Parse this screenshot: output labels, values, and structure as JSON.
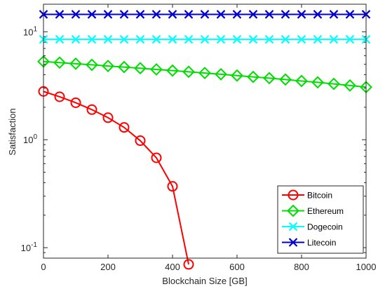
{
  "chart_data": {
    "type": "line",
    "title": "",
    "xlabel": "Blockchain Size [GB]",
    "ylabel": "Satisfaction",
    "xlim": [
      0,
      1000
    ],
    "ylim": [
      0.08,
      18
    ],
    "yscale": "log",
    "grid": false,
    "legend_position": "bottom-right",
    "x_ticks": [
      {
        "value": 0,
        "label": "0"
      },
      {
        "value": 200,
        "label": "200"
      },
      {
        "value": 400,
        "label": "400"
      },
      {
        "value": 600,
        "label": "600"
      },
      {
        "value": 800,
        "label": "800"
      },
      {
        "value": 1000,
        "label": "1000"
      }
    ],
    "y_ticks": [
      {
        "value": 0.1,
        "base": "10",
        "exp": "-1"
      },
      {
        "value": 1,
        "base": "10",
        "exp": "0"
      },
      {
        "value": 10,
        "base": "10",
        "exp": "1"
      }
    ],
    "series": [
      {
        "name": "Bitcoin",
        "color": "#ff0000",
        "marker": "circle",
        "x": [
          0,
          50,
          100,
          150,
          200,
          250,
          300,
          350,
          400,
          450
        ],
        "y": [
          2.8,
          2.5,
          2.2,
          1.9,
          1.6,
          1.3,
          0.98,
          0.68,
          0.37,
          0.07
        ]
      },
      {
        "name": "Ethereum",
        "color": "#00dd00",
        "marker": "diamond",
        "x": [
          0,
          50,
          100,
          150,
          200,
          250,
          300,
          350,
          400,
          450,
          500,
          550,
          600,
          650,
          700,
          750,
          800,
          850,
          900,
          950,
          1000
        ],
        "y": [
          5.3,
          5.18,
          5.06,
          4.94,
          4.82,
          4.71,
          4.6,
          4.48,
          4.37,
          4.26,
          4.15,
          4.04,
          3.93,
          3.82,
          3.72,
          3.61,
          3.5,
          3.4,
          3.29,
          3.18,
          3.07
        ]
      },
      {
        "name": "Dogecoin",
        "color": "#00ffff",
        "marker": "x",
        "x": [
          0,
          50,
          100,
          150,
          200,
          250,
          300,
          350,
          400,
          450,
          500,
          550,
          600,
          650,
          700,
          750,
          800,
          850,
          900,
          950,
          1000
        ],
        "y": [
          8.5,
          8.5,
          8.5,
          8.5,
          8.5,
          8.5,
          8.5,
          8.5,
          8.5,
          8.5,
          8.5,
          8.5,
          8.5,
          8.5,
          8.5,
          8.5,
          8.5,
          8.5,
          8.5,
          8.5,
          8.5
        ]
      },
      {
        "name": "Litecoin",
        "color": "#0000cc",
        "marker": "x",
        "x": [
          0,
          50,
          100,
          150,
          200,
          250,
          300,
          350,
          400,
          450,
          500,
          550,
          600,
          650,
          700,
          750,
          800,
          850,
          900,
          950,
          1000
        ],
        "y": [
          14.5,
          14.5,
          14.5,
          14.5,
          14.5,
          14.5,
          14.5,
          14.5,
          14.5,
          14.5,
          14.5,
          14.5,
          14.5,
          14.5,
          14.5,
          14.5,
          14.5,
          14.5,
          14.5,
          14.5,
          14.5
        ]
      }
    ]
  }
}
